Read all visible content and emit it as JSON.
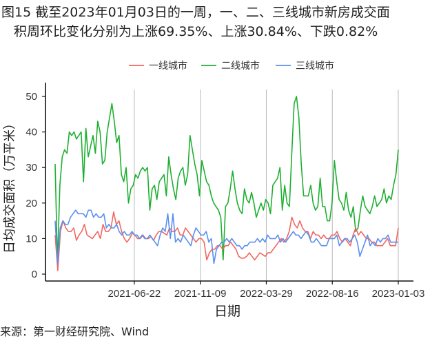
{
  "header": {
    "title_line1": "图15  截至2023年01月03日的一周，一、二、三线城市新房成交面",
    "title_line2": "积周环比变化分别为上涨69.35%、上涨30.84%、下跌0.82%"
  },
  "footer": {
    "source": "来源：第一财经研究院、Wind"
  },
  "chart_data": {
    "type": "line",
    "xlabel": "日期",
    "ylabel": "日均成交面积（万平米）",
    "ylim": [
      0,
      50
    ],
    "yticks": [
      0,
      10,
      20,
      30,
      40,
      50
    ],
    "xtick_labels": [
      "2021-06-22",
      "2021-11-09",
      "2022-03-29",
      "2022-08-16",
      "2023-01-03"
    ],
    "x_range": [
      "2021-01-05",
      "2023-01-03"
    ],
    "legend_position": "top",
    "grid": "vertical lines at x ticks",
    "colors": {
      "一线城市": "#f0675f",
      "二线城市": "#1db030",
      "三线城市": "#5b8ff0"
    },
    "series": [
      {
        "name": "一线城市",
        "values": [
          11,
          1,
          12,
          15,
          13,
          12,
          12,
          13,
          9.5,
          11,
          12,
          14,
          11,
          10.5,
          10,
          11,
          12,
          10,
          14,
          12,
          12,
          13,
          17.5,
          14,
          15,
          12,
          10,
          9,
          10,
          11.5,
          11,
          10,
          10,
          11,
          10,
          10,
          10.5,
          9.5,
          11,
          12,
          12,
          11.5,
          11,
          13,
          12,
          12,
          13,
          11,
          11,
          13,
          12,
          11,
          10,
          9,
          10,
          10,
          9,
          4,
          6,
          7,
          7,
          8,
          8,
          7,
          8,
          8,
          9,
          8,
          7,
          5,
          4.5,
          4.5,
          5,
          6,
          5,
          4,
          5,
          6,
          5.5,
          5,
          6,
          6,
          7,
          8,
          9,
          10,
          9,
          10,
          12,
          16,
          14,
          13,
          15,
          13,
          12,
          12,
          10,
          12,
          11,
          11,
          10,
          11,
          10,
          10,
          11,
          11,
          12,
          10,
          9,
          10,
          9,
          8,
          11,
          13,
          11,
          12,
          11,
          10,
          10,
          9,
          9,
          8,
          8,
          8,
          9,
          10,
          8,
          8,
          8,
          13
        ]
      },
      {
        "name": "二线城市",
        "values": [
          31,
          3,
          25,
          33,
          35,
          34,
          40,
          39,
          40,
          38,
          39,
          40,
          26,
          41,
          33,
          36,
          39,
          34,
          43,
          40,
          31,
          32,
          40,
          44,
          48,
          43,
          37,
          39,
          28,
          26,
          30,
          20,
          24,
          25,
          28,
          27,
          29,
          30,
          29,
          30,
          18,
          24,
          25,
          21,
          26,
          27,
          28,
          22,
          33,
          28,
          24,
          21,
          27,
          29,
          30,
          25,
          28,
          39,
          35,
          31,
          28,
          22,
          32,
          29,
          26,
          25,
          22,
          20,
          19,
          18,
          16,
          4,
          19,
          20,
          24,
          29,
          24,
          20,
          18,
          17,
          24,
          21,
          20,
          23,
          20,
          16,
          18,
          20,
          18,
          21,
          20,
          17,
          25,
          26,
          27,
          30,
          18,
          25,
          20,
          19,
          34,
          48,
          50,
          44,
          31,
          22,
          22,
          22,
          25,
          20,
          18,
          19,
          27,
          19,
          19,
          15,
          15,
          20,
          32,
          26,
          21,
          20,
          18,
          23,
          18,
          16,
          19,
          12,
          13,
          18,
          22,
          19,
          18,
          17,
          19,
          22,
          19,
          20,
          21,
          24,
          20,
          22,
          21,
          25,
          28,
          35
        ]
      },
      {
        "name": "三线城市",
        "values": [
          15,
          3,
          13,
          15,
          14,
          14,
          16,
          17,
          18,
          17,
          17,
          17,
          16,
          18,
          18,
          16,
          17,
          16,
          16,
          17,
          13,
          14,
          13,
          13,
          14,
          12,
          11,
          12,
          11,
          11,
          12,
          11,
          11,
          10,
          11,
          10,
          10,
          11,
          10,
          9,
          8,
          11,
          13,
          12,
          17,
          10,
          17,
          9,
          10,
          9,
          11,
          10,
          9,
          8,
          11,
          13,
          12,
          11,
          11,
          12,
          9,
          10,
          3,
          7,
          8,
          9,
          9,
          10,
          9,
          10,
          9,
          8,
          8,
          7,
          8,
          8,
          9,
          9,
          9,
          10,
          9,
          10,
          9,
          11,
          10,
          10,
          10,
          11,
          9,
          10,
          9,
          10,
          11,
          12,
          11,
          11,
          10,
          11,
          12,
          11,
          9,
          9,
          10,
          9,
          8,
          8,
          8,
          10,
          10,
          10,
          11,
          8,
          9,
          10,
          10,
          9,
          10,
          11,
          9,
          5,
          7,
          9,
          11,
          8,
          9,
          8,
          10,
          9,
          10,
          10,
          11,
          9,
          9,
          9,
          9
        ]
      }
    ]
  }
}
